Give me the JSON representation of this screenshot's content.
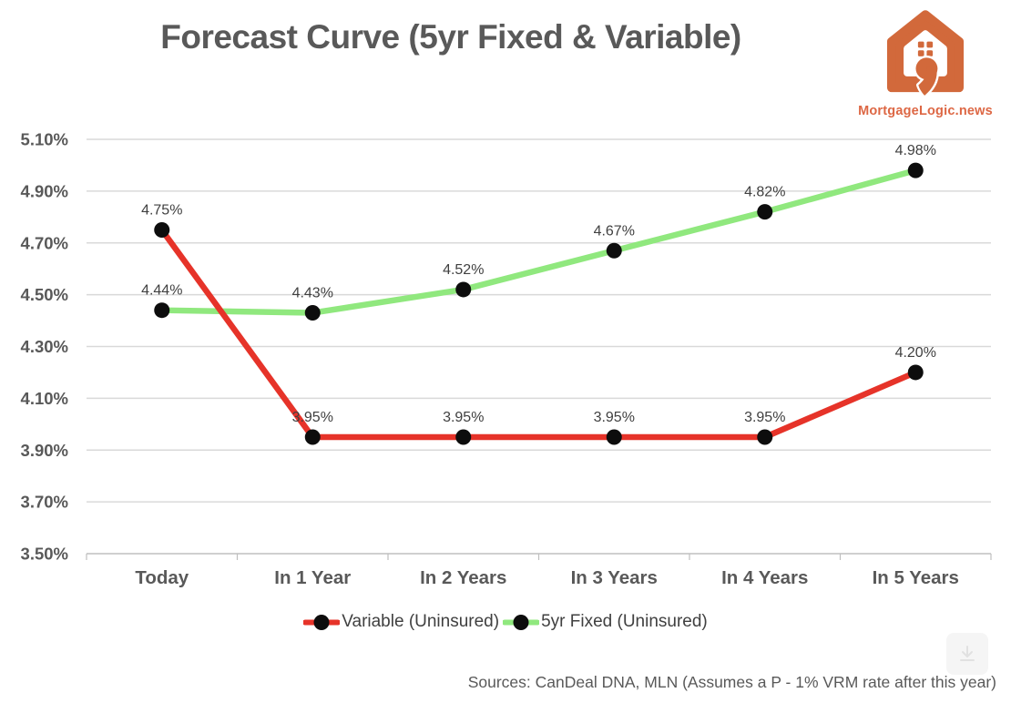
{
  "title": "Forecast Curve (5yr Fixed & Variable)",
  "logo": {
    "brand_text": "MortgageLogic.news",
    "orange": "#D2693B"
  },
  "colors": {
    "title": "#595959",
    "axis_label": "#595959",
    "grid": "#D9D9D9",
    "axis_line": "#BFBFBF",
    "data_label": "#404040",
    "marker": "#0d0d0d",
    "variable_red": "#E63329",
    "fixed_green": "#90E87E"
  },
  "chart_data": {
    "type": "line",
    "categories": [
      "Today",
      "In 1 Year",
      "In 2 Years",
      "In 3 Years",
      "In 4 Years",
      "In 5 Years"
    ],
    "series": [
      {
        "name": "Variable (Uninsured)",
        "color": "#E63329",
        "values": [
          4.75,
          3.95,
          3.95,
          3.95,
          3.95,
          4.2
        ],
        "labels": [
          "4.75%",
          "3.95%",
          "3.95%",
          "3.95%",
          "3.95%",
          "4.20%"
        ]
      },
      {
        "name": "5yr Fixed (Uninsured)",
        "color": "#90E87E",
        "values": [
          4.44,
          4.43,
          4.52,
          4.67,
          4.82,
          4.98
        ],
        "labels": [
          "4.44%",
          "4.43%",
          "4.52%",
          "4.67%",
          "4.82%",
          "4.98%"
        ]
      }
    ],
    "y_ticks": [
      "5.10%",
      "4.90%",
      "4.70%",
      "4.50%",
      "4.30%",
      "4.10%",
      "3.90%",
      "3.70%",
      "3.50%"
    ],
    "ylim": [
      3.5,
      5.1
    ],
    "grid": true,
    "legend_position": "bottom",
    "title": "Forecast Curve (5yr Fixed & Variable)"
  },
  "source_note": "Sources: CanDeal DNA, MLN (Assumes a P - 1% VRM rate after this year)"
}
